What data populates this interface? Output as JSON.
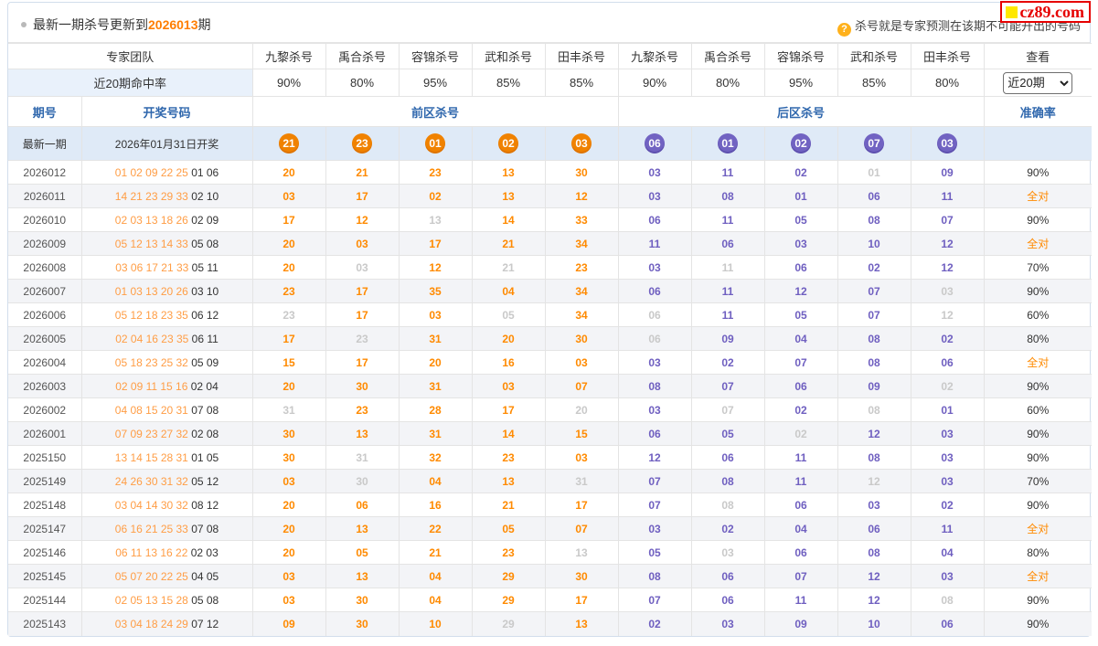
{
  "page": {
    "title_prefix": "最新一期杀号更新到",
    "title_issue": "2026013",
    "title_suffix": "期",
    "help_icon": "?",
    "help_text": "杀号就是专家预测在该期不可能开出的号码",
    "logo_text": "cz89.com"
  },
  "colors": {
    "kill_front_orange": "#ff8a00",
    "kill_back_purple": "#6f5fc0",
    "miss_gray": "#c9c9c9",
    "header_blue": "#2f67ad",
    "issue_orange": "#ff7e00",
    "circle_front": "#f08200",
    "circle_back": "#7163c2",
    "logo_red": "#e60000",
    "logo_yellow": "#ffe800",
    "latest_row_bg": "#dfeaf7",
    "alt_row_bg": "#f3f4f7"
  },
  "experts_header": {
    "team_label": "专家团队",
    "hit_rate_label": "近20期命中率",
    "view_label": "查看",
    "range_select_value": "近20期",
    "experts": [
      "九黎杀号",
      "禹合杀号",
      "容锦杀号",
      "武和杀号",
      "田丰杀号",
      "九黎杀号",
      "禹合杀号",
      "容锦杀号",
      "武和杀号",
      "田丰杀号"
    ],
    "hit_rates": [
      "90%",
      "80%",
      "95%",
      "85%",
      "85%",
      "90%",
      "80%",
      "95%",
      "85%",
      "80%"
    ]
  },
  "table_header": {
    "period": "期号",
    "draw_numbers": "开奖号码",
    "front_kills": "前区杀号",
    "back_kills": "后区杀号",
    "accuracy": "准确率"
  },
  "latest_row": {
    "label": "最新一期",
    "draw_date": "2026年01月31日开奖",
    "front_kills": [
      "21",
      "23",
      "01",
      "02",
      "03"
    ],
    "back_kills": [
      "06",
      "01",
      "02",
      "07",
      "03"
    ]
  },
  "rows": [
    {
      "period": "2026012",
      "draw_front": "01 02 09 22 25",
      "draw_back": "01 06",
      "front": [
        [
          "20",
          1
        ],
        [
          "21",
          1
        ],
        [
          "23",
          1
        ],
        [
          "13",
          1
        ],
        [
          "30",
          1
        ]
      ],
      "back": [
        [
          "03",
          1
        ],
        [
          "11",
          1
        ],
        [
          "02",
          1
        ],
        [
          "01",
          0
        ],
        [
          "09",
          1
        ]
      ],
      "acc": "90%"
    },
    {
      "period": "2026011",
      "draw_front": "14 21 23 29 33",
      "draw_back": "02 10",
      "front": [
        [
          "03",
          1
        ],
        [
          "17",
          1
        ],
        [
          "02",
          1
        ],
        [
          "13",
          1
        ],
        [
          "12",
          1
        ]
      ],
      "back": [
        [
          "03",
          1
        ],
        [
          "08",
          1
        ],
        [
          "01",
          1
        ],
        [
          "06",
          1
        ],
        [
          "11",
          1
        ]
      ],
      "acc": "全对"
    },
    {
      "period": "2026010",
      "draw_front": "02 03 13 18 26",
      "draw_back": "02 09",
      "front": [
        [
          "17",
          1
        ],
        [
          "12",
          1
        ],
        [
          "13",
          0
        ],
        [
          "14",
          1
        ],
        [
          "33",
          1
        ]
      ],
      "back": [
        [
          "06",
          1
        ],
        [
          "11",
          1
        ],
        [
          "05",
          1
        ],
        [
          "08",
          1
        ],
        [
          "07",
          1
        ]
      ],
      "acc": "90%"
    },
    {
      "period": "2026009",
      "draw_front": "05 12 13 14 33",
      "draw_back": "05 08",
      "front": [
        [
          "20",
          1
        ],
        [
          "03",
          1
        ],
        [
          "17",
          1
        ],
        [
          "21",
          1
        ],
        [
          "34",
          1
        ]
      ],
      "back": [
        [
          "11",
          1
        ],
        [
          "06",
          1
        ],
        [
          "03",
          1
        ],
        [
          "10",
          1
        ],
        [
          "12",
          1
        ]
      ],
      "acc": "全对"
    },
    {
      "period": "2026008",
      "draw_front": "03 06 17 21 33",
      "draw_back": "05 11",
      "front": [
        [
          "20",
          1
        ],
        [
          "03",
          0
        ],
        [
          "12",
          1
        ],
        [
          "21",
          0
        ],
        [
          "23",
          1
        ]
      ],
      "back": [
        [
          "03",
          1
        ],
        [
          "11",
          0
        ],
        [
          "06",
          1
        ],
        [
          "02",
          1
        ],
        [
          "12",
          1
        ]
      ],
      "acc": "70%"
    },
    {
      "period": "2026007",
      "draw_front": "01 03 13 20 26",
      "draw_back": "03 10",
      "front": [
        [
          "23",
          1
        ],
        [
          "17",
          1
        ],
        [
          "35",
          1
        ],
        [
          "04",
          1
        ],
        [
          "34",
          1
        ]
      ],
      "back": [
        [
          "06",
          1
        ],
        [
          "11",
          1
        ],
        [
          "12",
          1
        ],
        [
          "07",
          1
        ],
        [
          "03",
          0
        ]
      ],
      "acc": "90%"
    },
    {
      "period": "2026006",
      "draw_front": "05 12 18 23 35",
      "draw_back": "06 12",
      "front": [
        [
          "23",
          0
        ],
        [
          "17",
          1
        ],
        [
          "03",
          1
        ],
        [
          "05",
          0
        ],
        [
          "34",
          1
        ]
      ],
      "back": [
        [
          "06",
          0
        ],
        [
          "11",
          1
        ],
        [
          "05",
          1
        ],
        [
          "07",
          1
        ],
        [
          "12",
          0
        ]
      ],
      "acc": "60%"
    },
    {
      "period": "2026005",
      "draw_front": "02 04 16 23 35",
      "draw_back": "06 11",
      "front": [
        [
          "17",
          1
        ],
        [
          "23",
          0
        ],
        [
          "31",
          1
        ],
        [
          "20",
          1
        ],
        [
          "30",
          1
        ]
      ],
      "back": [
        [
          "06",
          0
        ],
        [
          "09",
          1
        ],
        [
          "04",
          1
        ],
        [
          "08",
          1
        ],
        [
          "02",
          1
        ]
      ],
      "acc": "80%"
    },
    {
      "period": "2026004",
      "draw_front": "05 18 23 25 32",
      "draw_back": "05 09",
      "front": [
        [
          "15",
          1
        ],
        [
          "17",
          1
        ],
        [
          "20",
          1
        ],
        [
          "16",
          1
        ],
        [
          "03",
          1
        ]
      ],
      "back": [
        [
          "03",
          1
        ],
        [
          "02",
          1
        ],
        [
          "07",
          1
        ],
        [
          "08",
          1
        ],
        [
          "06",
          1
        ]
      ],
      "acc": "全对"
    },
    {
      "period": "2026003",
      "draw_front": "02 09 11 15 16",
      "draw_back": "02 04",
      "front": [
        [
          "20",
          1
        ],
        [
          "30",
          1
        ],
        [
          "31",
          1
        ],
        [
          "03",
          1
        ],
        [
          "07",
          1
        ]
      ],
      "back": [
        [
          "08",
          1
        ],
        [
          "07",
          1
        ],
        [
          "06",
          1
        ],
        [
          "09",
          1
        ],
        [
          "02",
          0
        ]
      ],
      "acc": "90%"
    },
    {
      "period": "2026002",
      "draw_front": "04 08 15 20 31",
      "draw_back": "07 08",
      "front": [
        [
          "31",
          0
        ],
        [
          "23",
          1
        ],
        [
          "28",
          1
        ],
        [
          "17",
          1
        ],
        [
          "20",
          0
        ]
      ],
      "back": [
        [
          "03",
          1
        ],
        [
          "07",
          0
        ],
        [
          "02",
          1
        ],
        [
          "08",
          0
        ],
        [
          "01",
          1
        ]
      ],
      "acc": "60%"
    },
    {
      "period": "2026001",
      "draw_front": "07 09 23 27 32",
      "draw_back": "02 08",
      "front": [
        [
          "30",
          1
        ],
        [
          "13",
          1
        ],
        [
          "31",
          1
        ],
        [
          "14",
          1
        ],
        [
          "15",
          1
        ]
      ],
      "back": [
        [
          "06",
          1
        ],
        [
          "05",
          1
        ],
        [
          "02",
          0
        ],
        [
          "12",
          1
        ],
        [
          "03",
          1
        ]
      ],
      "acc": "90%"
    },
    {
      "period": "2025150",
      "draw_front": "13 14 15 28 31",
      "draw_back": "01 05",
      "front": [
        [
          "30",
          1
        ],
        [
          "31",
          0
        ],
        [
          "32",
          1
        ],
        [
          "23",
          1
        ],
        [
          "03",
          1
        ]
      ],
      "back": [
        [
          "12",
          1
        ],
        [
          "06",
          1
        ],
        [
          "11",
          1
        ],
        [
          "08",
          1
        ],
        [
          "03",
          1
        ]
      ],
      "acc": "90%"
    },
    {
      "period": "2025149",
      "draw_front": "24 26 30 31 32",
      "draw_back": "05 12",
      "front": [
        [
          "03",
          1
        ],
        [
          "30",
          0
        ],
        [
          "04",
          1
        ],
        [
          "13",
          1
        ],
        [
          "31",
          0
        ]
      ],
      "back": [
        [
          "07",
          1
        ],
        [
          "08",
          1
        ],
        [
          "11",
          1
        ],
        [
          "12",
          0
        ],
        [
          "03",
          1
        ]
      ],
      "acc": "70%"
    },
    {
      "period": "2025148",
      "draw_front": "03 04 14 30 32",
      "draw_back": "08 12",
      "front": [
        [
          "20",
          1
        ],
        [
          "06",
          1
        ],
        [
          "16",
          1
        ],
        [
          "21",
          1
        ],
        [
          "17",
          1
        ]
      ],
      "back": [
        [
          "07",
          1
        ],
        [
          "08",
          0
        ],
        [
          "06",
          1
        ],
        [
          "03",
          1
        ],
        [
          "02",
          1
        ]
      ],
      "acc": "90%"
    },
    {
      "period": "2025147",
      "draw_front": "06 16 21 25 33",
      "draw_back": "07 08",
      "front": [
        [
          "20",
          1
        ],
        [
          "13",
          1
        ],
        [
          "22",
          1
        ],
        [
          "05",
          1
        ],
        [
          "07",
          1
        ]
      ],
      "back": [
        [
          "03",
          1
        ],
        [
          "02",
          1
        ],
        [
          "04",
          1
        ],
        [
          "06",
          1
        ],
        [
          "11",
          1
        ]
      ],
      "acc": "全对"
    },
    {
      "period": "2025146",
      "draw_front": "06 11 13 16 22",
      "draw_back": "02 03",
      "front": [
        [
          "20",
          1
        ],
        [
          "05",
          1
        ],
        [
          "21",
          1
        ],
        [
          "23",
          1
        ],
        [
          "13",
          0
        ]
      ],
      "back": [
        [
          "05",
          1
        ],
        [
          "03",
          0
        ],
        [
          "06",
          1
        ],
        [
          "08",
          1
        ],
        [
          "04",
          1
        ]
      ],
      "acc": "80%"
    },
    {
      "period": "2025145",
      "draw_front": "05 07 20 22 25",
      "draw_back": "04 05",
      "front": [
        [
          "03",
          1
        ],
        [
          "13",
          1
        ],
        [
          "04",
          1
        ],
        [
          "29",
          1
        ],
        [
          "30",
          1
        ]
      ],
      "back": [
        [
          "08",
          1
        ],
        [
          "06",
          1
        ],
        [
          "07",
          1
        ],
        [
          "12",
          1
        ],
        [
          "03",
          1
        ]
      ],
      "acc": "全对"
    },
    {
      "period": "2025144",
      "draw_front": "02 05 13 15 28",
      "draw_back": "05 08",
      "front": [
        [
          "03",
          1
        ],
        [
          "30",
          1
        ],
        [
          "04",
          1
        ],
        [
          "29",
          1
        ],
        [
          "17",
          1
        ]
      ],
      "back": [
        [
          "07",
          1
        ],
        [
          "06",
          1
        ],
        [
          "11",
          1
        ],
        [
          "12",
          1
        ],
        [
          "08",
          0
        ]
      ],
      "acc": "90%"
    },
    {
      "period": "2025143",
      "draw_front": "03 04 18 24 29",
      "draw_back": "07 12",
      "front": [
        [
          "09",
          1
        ],
        [
          "30",
          1
        ],
        [
          "10",
          1
        ],
        [
          "29",
          0
        ],
        [
          "13",
          1
        ]
      ],
      "back": [
        [
          "02",
          1
        ],
        [
          "03",
          1
        ],
        [
          "09",
          1
        ],
        [
          "10",
          1
        ],
        [
          "06",
          1
        ]
      ],
      "acc": "90%"
    }
  ]
}
